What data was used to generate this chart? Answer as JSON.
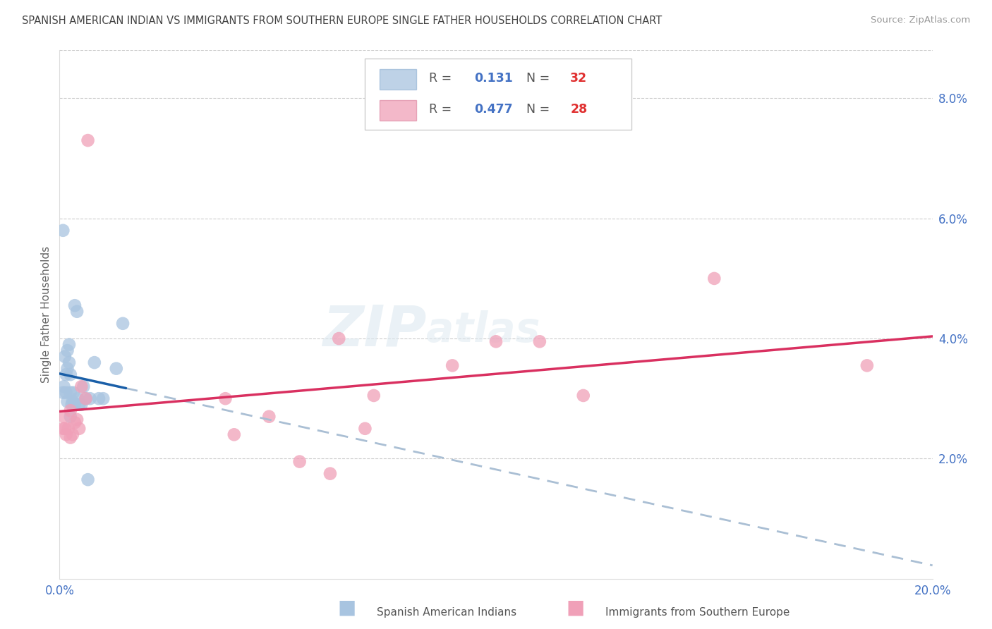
{
  "title": "SPANISH AMERICAN INDIAN VS IMMIGRANTS FROM SOUTHERN EUROPE SINGLE FATHER HOUSEHOLDS CORRELATION CHART",
  "source": "Source: ZipAtlas.com",
  "ylabel": "Single Father Households",
  "xlim": [
    0.0,
    0.2
  ],
  "ylim": [
    0.0,
    0.088
  ],
  "yticks_right": [
    0.02,
    0.04,
    0.06,
    0.08
  ],
  "ytick_right_labels": [
    "2.0%",
    "4.0%",
    "6.0%",
    "8.0%"
  ],
  "blue_R": "0.131",
  "blue_N": "32",
  "pink_R": "0.477",
  "pink_N": "28",
  "blue_color": "#a8c4e0",
  "blue_line_color": "#1a5fa8",
  "blue_dashed_color": "#aabfd4",
  "pink_color": "#f0a0b8",
  "pink_line_color": "#d93060",
  "watermark": "ZIPAtlas",
  "blue_points_x": [
    0.0008,
    0.0008,
    0.001,
    0.0012,
    0.0015,
    0.0015,
    0.0018,
    0.0018,
    0.0018,
    0.0022,
    0.0022,
    0.0025,
    0.0025,
    0.0025,
    0.0028,
    0.003,
    0.0032,
    0.0035,
    0.0035,
    0.004,
    0.0042,
    0.0045,
    0.005,
    0.0055,
    0.006,
    0.0065,
    0.007,
    0.008,
    0.009,
    0.01,
    0.013,
    0.0145
  ],
  "blue_points_y": [
    0.058,
    0.031,
    0.032,
    0.037,
    0.034,
    0.031,
    0.038,
    0.035,
    0.0295,
    0.039,
    0.036,
    0.034,
    0.031,
    0.027,
    0.029,
    0.0295,
    0.031,
    0.029,
    0.0455,
    0.0445,
    0.03,
    0.029,
    0.029,
    0.032,
    0.03,
    0.0165,
    0.03,
    0.036,
    0.03,
    0.03,
    0.035,
    0.0425
  ],
  "pink_points_x": [
    0.0008,
    0.001,
    0.0012,
    0.0015,
    0.002,
    0.0025,
    0.0025,
    0.003,
    0.0035,
    0.004,
    0.0045,
    0.005,
    0.006,
    0.0065,
    0.038,
    0.04,
    0.048,
    0.055,
    0.062,
    0.064,
    0.07,
    0.072,
    0.09,
    0.1,
    0.11,
    0.12,
    0.15,
    0.185
  ],
  "pink_points_y": [
    0.025,
    0.027,
    0.025,
    0.024,
    0.025,
    0.0235,
    0.028,
    0.024,
    0.026,
    0.0265,
    0.025,
    0.032,
    0.03,
    0.073,
    0.03,
    0.024,
    0.027,
    0.0195,
    0.0175,
    0.04,
    0.025,
    0.0305,
    0.0355,
    0.0395,
    0.0395,
    0.0305,
    0.05,
    0.0355
  ],
  "background_color": "#ffffff",
  "grid_color": "#cccccc"
}
